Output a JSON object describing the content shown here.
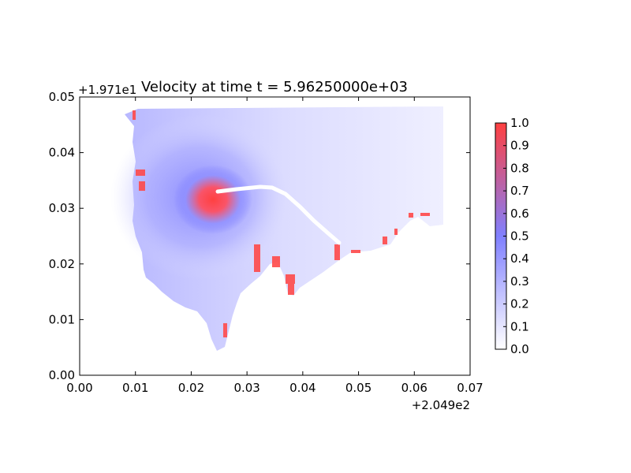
{
  "chart_data": {
    "type": "heatmap",
    "title": "Velocity at time t = 5.96250000e+03",
    "xlabel": "",
    "ylabel": "",
    "x_offset_label": "+2.049e2",
    "y_offset_label": "+1.971e1",
    "xlim": [
      0.0,
      0.07
    ],
    "ylim": [
      0.0,
      0.05
    ],
    "x_ticks": [
      "0.00",
      "0.01",
      "0.02",
      "0.03",
      "0.04",
      "0.05",
      "0.06",
      "0.07"
    ],
    "y_ticks": [
      "0.00",
      "0.01",
      "0.02",
      "0.03",
      "0.04",
      "0.05"
    ],
    "colorbar": {
      "ticks": [
        "0.0",
        "0.1",
        "0.2",
        "0.3",
        "0.4",
        "0.5",
        "0.6",
        "0.7",
        "0.8",
        "0.9",
        "1.0"
      ],
      "range": [
        0.0,
        1.0
      ],
      "colors": [
        "#ffffff",
        "#8080ff",
        "#ff4040"
      ]
    },
    "grid": false,
    "features": {
      "high_velocity_center": [
        0.025,
        0.032
      ],
      "track": [
        [
          0.025,
          0.033
        ],
        [
          0.029,
          0.0335
        ],
        [
          0.033,
          0.034
        ],
        [
          0.036,
          0.033
        ],
        [
          0.039,
          0.03
        ],
        [
          0.042,
          0.0265
        ],
        [
          0.046,
          0.022
        ]
      ]
    }
  }
}
